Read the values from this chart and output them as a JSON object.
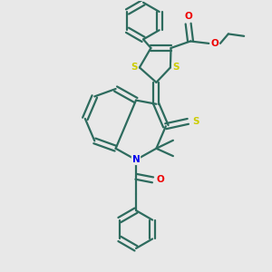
{
  "background_color": "#e8e8e8",
  "bond_color": "#2d6b5e",
  "S_color": "#cccc00",
  "N_color": "#0000ee",
  "O_color": "#ee0000",
  "lw": 1.6,
  "figsize": [
    3.0,
    3.0
  ],
  "dpi": 100,
  "xlim": [
    0,
    10
  ],
  "ylim": [
    0,
    10
  ]
}
